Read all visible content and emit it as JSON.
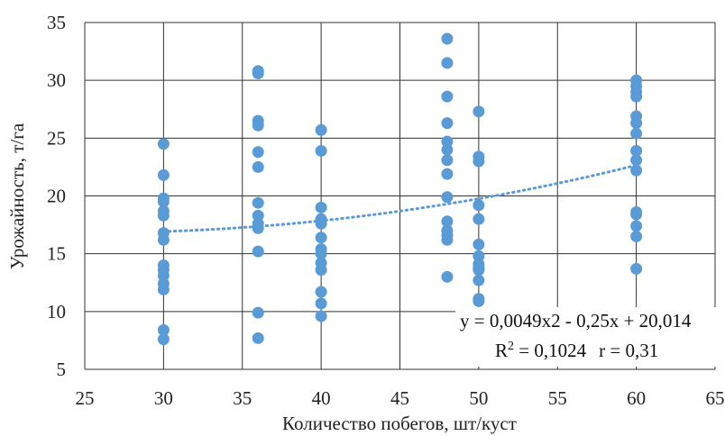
{
  "chart_data": {
    "type": "scatter",
    "title": "",
    "xlabel": "Количество побегов, шт/куст",
    "ylabel": "Урожайность, т/га",
    "xlim": [
      25,
      65
    ],
    "ylim": [
      5,
      35
    ],
    "x_ticks": [
      25,
      30,
      35,
      40,
      45,
      50,
      55,
      60,
      65
    ],
    "y_ticks": [
      5,
      10,
      15,
      20,
      25,
      30,
      35
    ],
    "x_tick_labels": [
      "25",
      "30",
      "35",
      "40",
      "45",
      "50",
      "55",
      "60",
      "65"
    ],
    "y_tick_labels": [
      "5",
      "10",
      "15",
      "20",
      "25",
      "30",
      "35"
    ],
    "grid": true,
    "point_color": "#5b9bd5",
    "trendline_color": "#5b9bd5",
    "series": [
      {
        "points": [
          [
            30,
            24.5
          ],
          [
            30,
            21.8
          ],
          [
            30,
            19.8
          ],
          [
            30,
            19.5
          ],
          [
            30,
            18.7
          ],
          [
            30,
            18.3
          ],
          [
            30,
            16.8
          ],
          [
            30,
            16.2
          ],
          [
            30,
            14.0
          ],
          [
            30,
            13.6
          ],
          [
            30,
            13.1
          ],
          [
            30,
            12.4
          ],
          [
            30,
            11.9
          ],
          [
            30,
            8.4
          ],
          [
            30,
            7.6
          ],
          [
            36,
            30.8
          ],
          [
            36,
            30.6
          ],
          [
            36,
            26.5
          ],
          [
            36,
            26.1
          ],
          [
            36,
            23.8
          ],
          [
            36,
            22.5
          ],
          [
            36,
            19.4
          ],
          [
            36,
            18.3
          ],
          [
            36,
            17.6
          ],
          [
            36,
            17.2
          ],
          [
            36,
            15.2
          ],
          [
            36,
            9.9
          ],
          [
            36,
            7.7
          ],
          [
            40,
            25.7
          ],
          [
            40,
            23.9
          ],
          [
            40,
            19.0
          ],
          [
            40,
            18.0
          ],
          [
            40,
            17.6
          ],
          [
            40,
            16.4
          ],
          [
            40,
            15.4
          ],
          [
            40,
            15.0
          ],
          [
            40,
            14.2
          ],
          [
            40,
            13.6
          ],
          [
            40,
            11.7
          ],
          [
            40,
            10.7
          ],
          [
            40,
            9.6
          ],
          [
            48,
            33.6
          ],
          [
            48,
            31.5
          ],
          [
            48,
            28.6
          ],
          [
            48,
            26.3
          ],
          [
            48,
            24.7
          ],
          [
            48,
            24.0
          ],
          [
            48,
            23.1
          ],
          [
            48,
            21.9
          ],
          [
            48,
            19.9
          ],
          [
            48,
            17.8
          ],
          [
            48,
            17.0
          ],
          [
            48,
            16.6
          ],
          [
            48,
            16.2
          ],
          [
            48,
            13.0
          ],
          [
            50,
            27.3
          ],
          [
            50,
            23.4
          ],
          [
            50,
            23.0
          ],
          [
            50,
            19.2
          ],
          [
            50,
            18.0
          ],
          [
            50,
            15.8
          ],
          [
            50,
            14.8
          ],
          [
            50,
            14.1
          ],
          [
            50,
            13.8
          ],
          [
            50,
            13.6
          ],
          [
            50,
            12.7
          ],
          [
            50,
            11.1
          ],
          [
            50,
            10.9
          ],
          [
            50,
            8.4
          ],
          [
            60,
            30.0
          ],
          [
            60,
            29.5
          ],
          [
            60,
            29.0
          ],
          [
            60,
            28.6
          ],
          [
            60,
            26.9
          ],
          [
            60,
            26.3
          ],
          [
            60,
            25.4
          ],
          [
            60,
            23.9
          ],
          [
            60,
            23.1
          ],
          [
            60,
            22.2
          ],
          [
            60,
            18.6
          ],
          [
            60,
            18.4
          ],
          [
            60,
            17.4
          ],
          [
            60,
            16.5
          ],
          [
            60,
            13.7
          ]
        ]
      }
    ],
    "trendline": {
      "type": "polynomial",
      "coefficients": [
        0.0049,
        -0.25,
        20.014
      ],
      "x_range": [
        30,
        60
      ],
      "equation": "y = 0,0049x2 - 0,25x + 20,014",
      "r2_label": "R",
      "r2_superscript": "2",
      "r2_value": " = 0,1024",
      "r_label": "r = 0,31"
    }
  }
}
